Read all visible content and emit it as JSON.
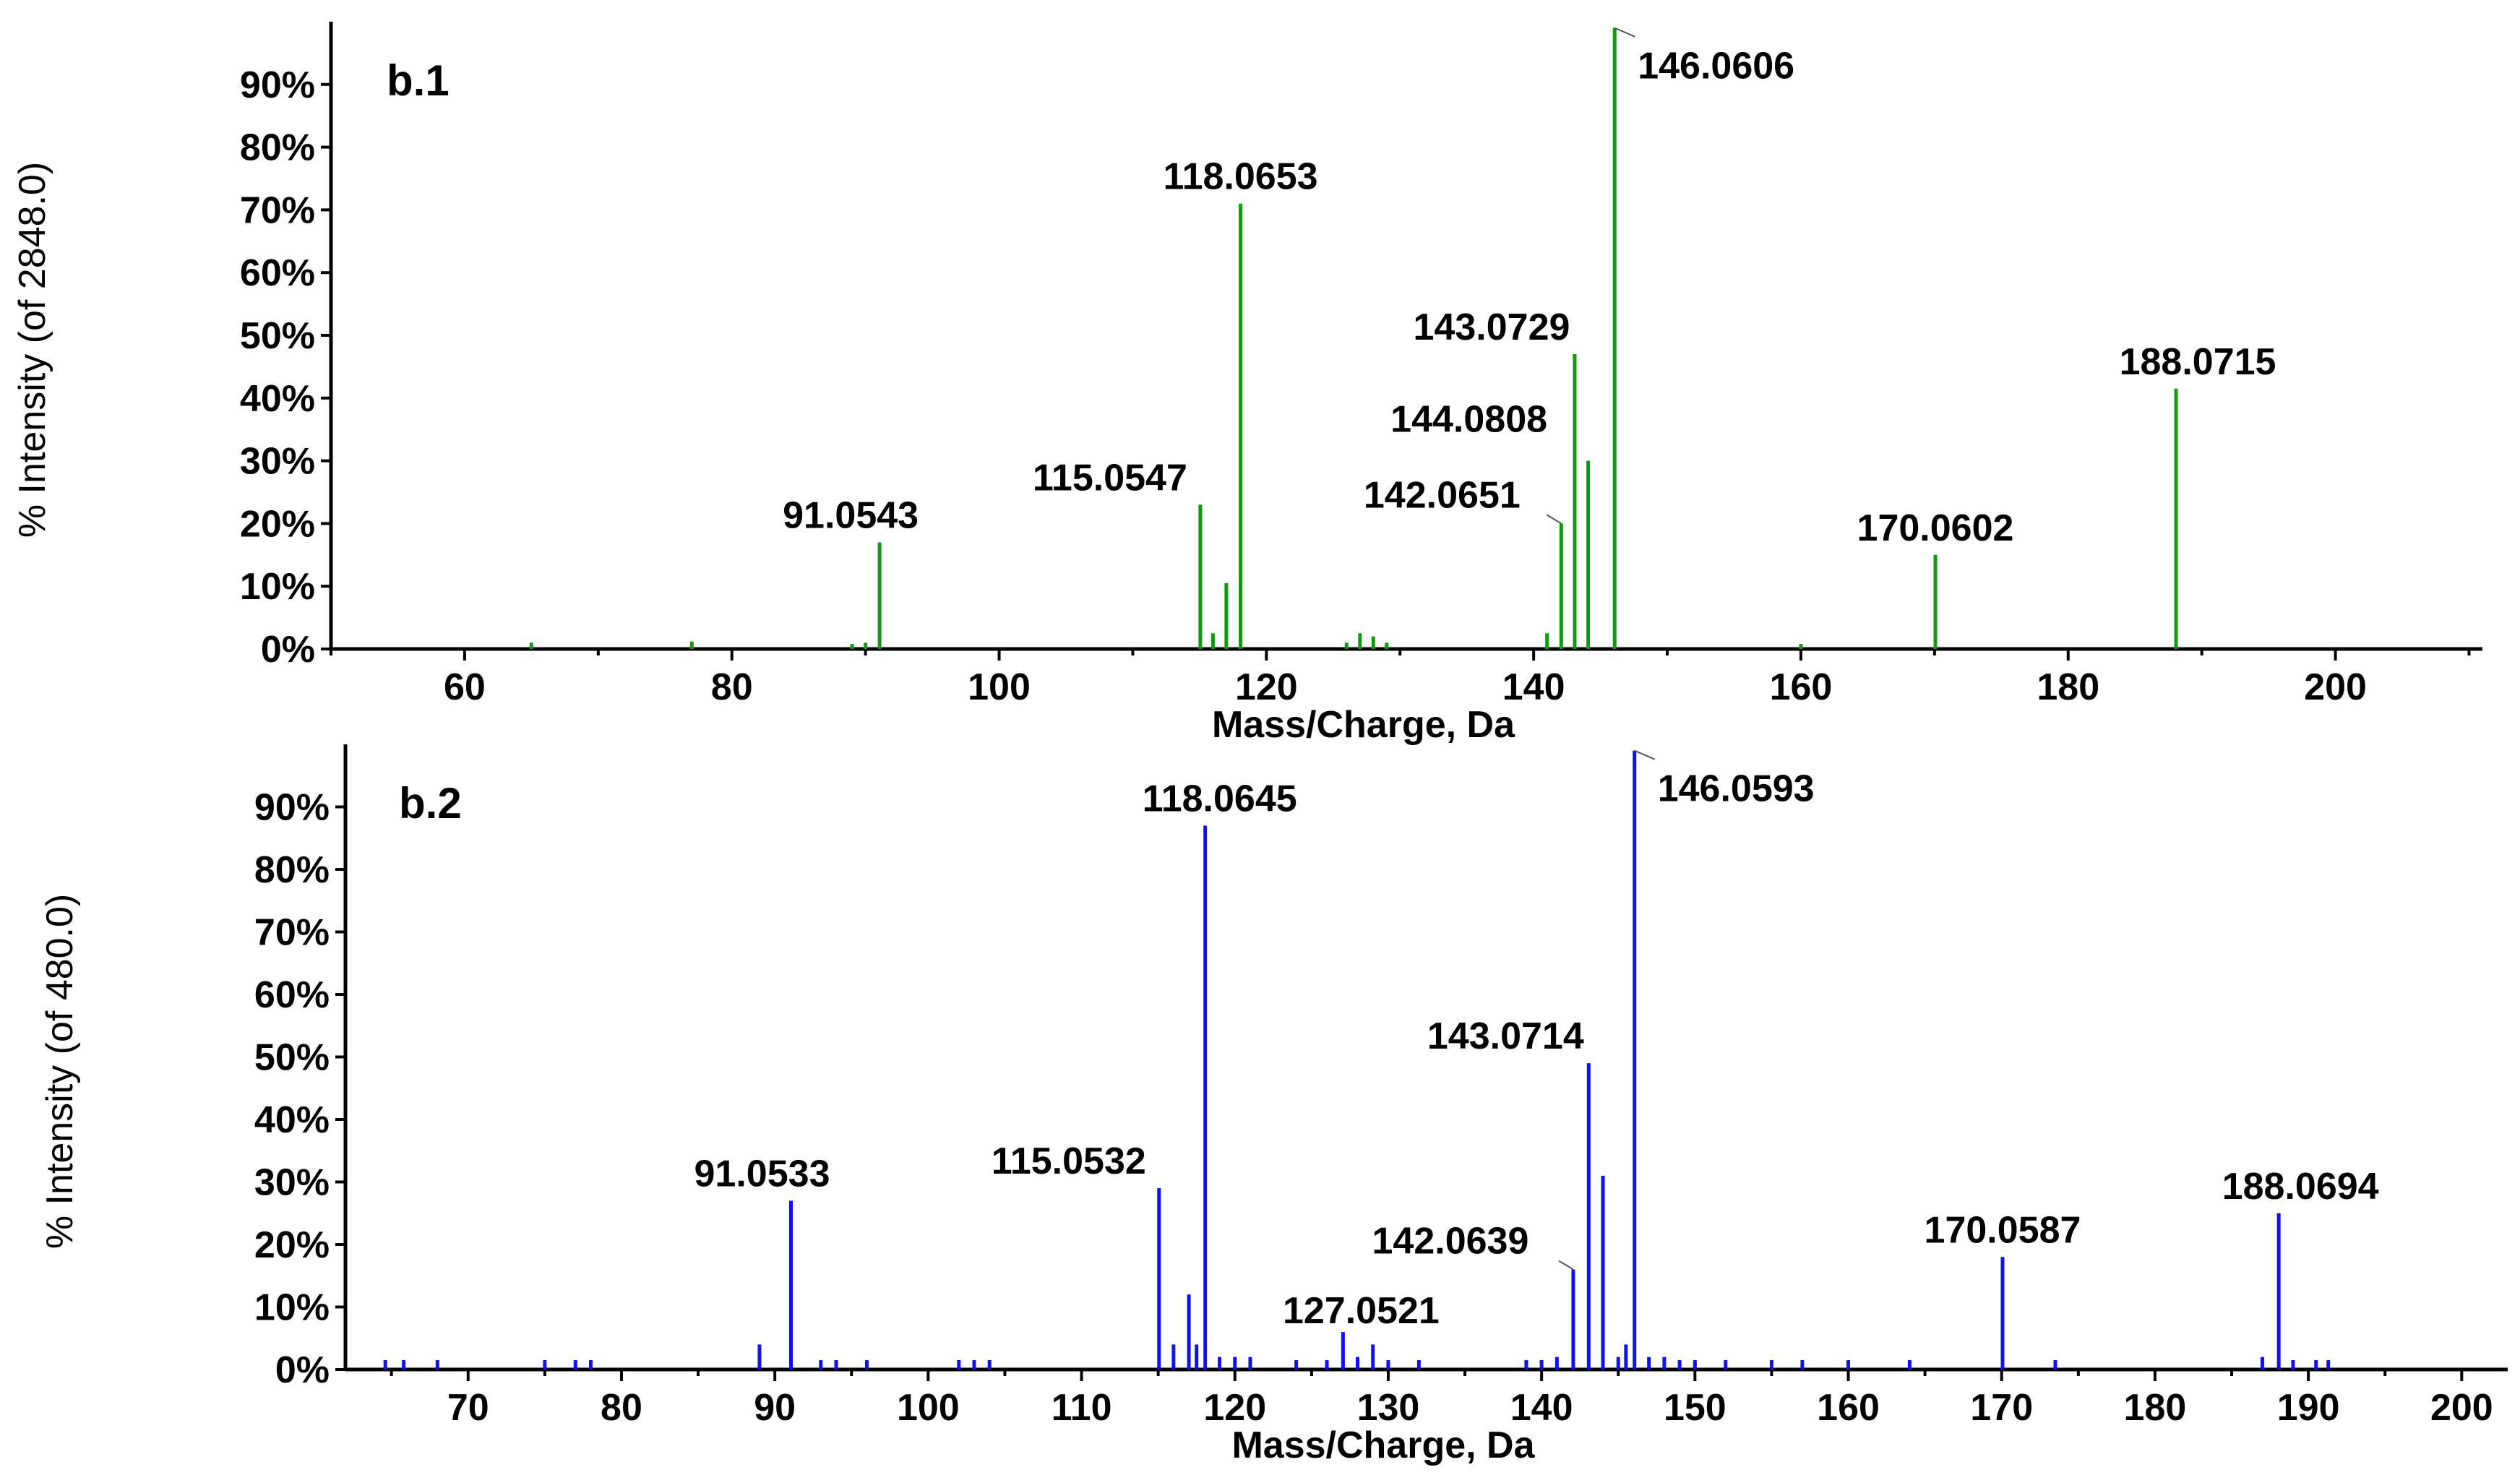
{
  "chart_data": [
    {
      "type": "bar",
      "title": "b.1",
      "xlabel": "Mass/Charge, Da",
      "ylabel": "% Intensity (of 2848.0)",
      "xlim": [
        50,
        211
      ],
      "ylim": [
        0,
        100
      ],
      "grid": false,
      "color": "#119911",
      "xticks": [
        60,
        80,
        100,
        120,
        140,
        160,
        180,
        200
      ],
      "yticks": [
        0,
        10,
        20,
        30,
        40,
        50,
        60,
        70,
        80,
        90
      ],
      "ytick_labels": [
        "0%",
        "10%",
        "20%",
        "30%",
        "40%",
        "50%",
        "60%",
        "70%",
        "80%",
        "90%"
      ],
      "peaks": [
        {
          "mz": 65.0,
          "intensity": 1
        },
        {
          "mz": 77.0,
          "intensity": 1.2
        },
        {
          "mz": 89.0,
          "intensity": 0.8
        },
        {
          "mz": 90.0,
          "intensity": 1
        },
        {
          "mz": 91.0543,
          "intensity": 17,
          "label": "91.0543"
        },
        {
          "mz": 115.0547,
          "intensity": 23,
          "label": "115.0547"
        },
        {
          "mz": 116.0,
          "intensity": 2.5
        },
        {
          "mz": 117.0,
          "intensity": 10.5
        },
        {
          "mz": 118.0653,
          "intensity": 71,
          "label": "118.0653"
        },
        {
          "mz": 126.0,
          "intensity": 1
        },
        {
          "mz": 127.0,
          "intensity": 2.5
        },
        {
          "mz": 128.0,
          "intensity": 2
        },
        {
          "mz": 129.0,
          "intensity": 1
        },
        {
          "mz": 141.0,
          "intensity": 2.5
        },
        {
          "mz": 142.0651,
          "intensity": 20,
          "label": "142.0651"
        },
        {
          "mz": 143.0729,
          "intensity": 47,
          "label": "143.0729"
        },
        {
          "mz": 144.0808,
          "intensity": 30,
          "label": "144.0808"
        },
        {
          "mz": 146.0606,
          "intensity": 99,
          "label": "146.0606"
        },
        {
          "mz": 160.0,
          "intensity": 0.8
        },
        {
          "mz": 170.0602,
          "intensity": 15,
          "label": "170.0602"
        },
        {
          "mz": 188.0715,
          "intensity": 41.5,
          "label": "188.0715"
        }
      ]
    },
    {
      "type": "bar",
      "title": "b.2",
      "xlabel": "Mass/Charge, Da",
      "ylabel": "% Intensity (of 480.0)",
      "xlim": [
        62,
        203
      ],
      "ylim": [
        0,
        100
      ],
      "grid": false,
      "color": "#1111ee",
      "xticks": [
        70,
        80,
        90,
        100,
        110,
        120,
        130,
        140,
        150,
        160,
        170,
        180,
        190,
        200
      ],
      "yticks": [
        0,
        10,
        20,
        30,
        40,
        50,
        60,
        70,
        80,
        90
      ],
      "ytick_labels": [
        "0%",
        "10%",
        "20%",
        "30%",
        "40%",
        "50%",
        "60%",
        "70%",
        "80%",
        "90%"
      ],
      "peaks": [
        {
          "mz": 64.6,
          "intensity": 1.5
        },
        {
          "mz": 65.8,
          "intensity": 1.5
        },
        {
          "mz": 68.0,
          "intensity": 1.5
        },
        {
          "mz": 75.0,
          "intensity": 1.5
        },
        {
          "mz": 77.0,
          "intensity": 1.5
        },
        {
          "mz": 78.0,
          "intensity": 1.5
        },
        {
          "mz": 89.0,
          "intensity": 4
        },
        {
          "mz": 91.0533,
          "intensity": 27,
          "label": "91.0533"
        },
        {
          "mz": 93.0,
          "intensity": 1.5
        },
        {
          "mz": 94.0,
          "intensity": 1.5
        },
        {
          "mz": 96.0,
          "intensity": 1.5
        },
        {
          "mz": 102.0,
          "intensity": 1.5
        },
        {
          "mz": 103.0,
          "intensity": 1.5
        },
        {
          "mz": 104.0,
          "intensity": 1.5
        },
        {
          "mz": 115.0532,
          "intensity": 29,
          "label": "115.0532"
        },
        {
          "mz": 116.0,
          "intensity": 4
        },
        {
          "mz": 117.0,
          "intensity": 12
        },
        {
          "mz": 117.5,
          "intensity": 4
        },
        {
          "mz": 118.0645,
          "intensity": 87,
          "label": "118.0645"
        },
        {
          "mz": 119.0,
          "intensity": 2
        },
        {
          "mz": 120.0,
          "intensity": 2
        },
        {
          "mz": 121.0,
          "intensity": 2
        },
        {
          "mz": 124.0,
          "intensity": 1.5
        },
        {
          "mz": 126.0,
          "intensity": 1.5
        },
        {
          "mz": 127.0521,
          "intensity": 6,
          "label": "127.0521"
        },
        {
          "mz": 128.0,
          "intensity": 2
        },
        {
          "mz": 129.0,
          "intensity": 4
        },
        {
          "mz": 130.0,
          "intensity": 1.5
        },
        {
          "mz": 132.0,
          "intensity": 1.5
        },
        {
          "mz": 139.0,
          "intensity": 1.5
        },
        {
          "mz": 140.0,
          "intensity": 1.5
        },
        {
          "mz": 141.0,
          "intensity": 2
        },
        {
          "mz": 142.0639,
          "intensity": 16,
          "label": "142.0639"
        },
        {
          "mz": 143.0714,
          "intensity": 49,
          "label": "143.0714"
        },
        {
          "mz": 144.0,
          "intensity": 31
        },
        {
          "mz": 145.0,
          "intensity": 2
        },
        {
          "mz": 145.5,
          "intensity": 4
        },
        {
          "mz": 146.0593,
          "intensity": 99,
          "label": "146.0593"
        },
        {
          "mz": 147.0,
          "intensity": 2
        },
        {
          "mz": 148.0,
          "intensity": 2
        },
        {
          "mz": 149.0,
          "intensity": 1.5
        },
        {
          "mz": 150.0,
          "intensity": 1.5
        },
        {
          "mz": 152.0,
          "intensity": 1.5
        },
        {
          "mz": 155.0,
          "intensity": 1.5
        },
        {
          "mz": 157.0,
          "intensity": 1.5
        },
        {
          "mz": 160.0,
          "intensity": 1.5
        },
        {
          "mz": 164.0,
          "intensity": 1.5
        },
        {
          "mz": 170.0587,
          "intensity": 18,
          "label": "170.0587"
        },
        {
          "mz": 173.5,
          "intensity": 1.5
        },
        {
          "mz": 187.0,
          "intensity": 2
        },
        {
          "mz": 188.0694,
          "intensity": 25,
          "label": "188.0694"
        },
        {
          "mz": 189.0,
          "intensity": 1.5
        },
        {
          "mz": 190.5,
          "intensity": 1.5
        },
        {
          "mz": 191.3,
          "intensity": 1.5
        }
      ]
    }
  ]
}
